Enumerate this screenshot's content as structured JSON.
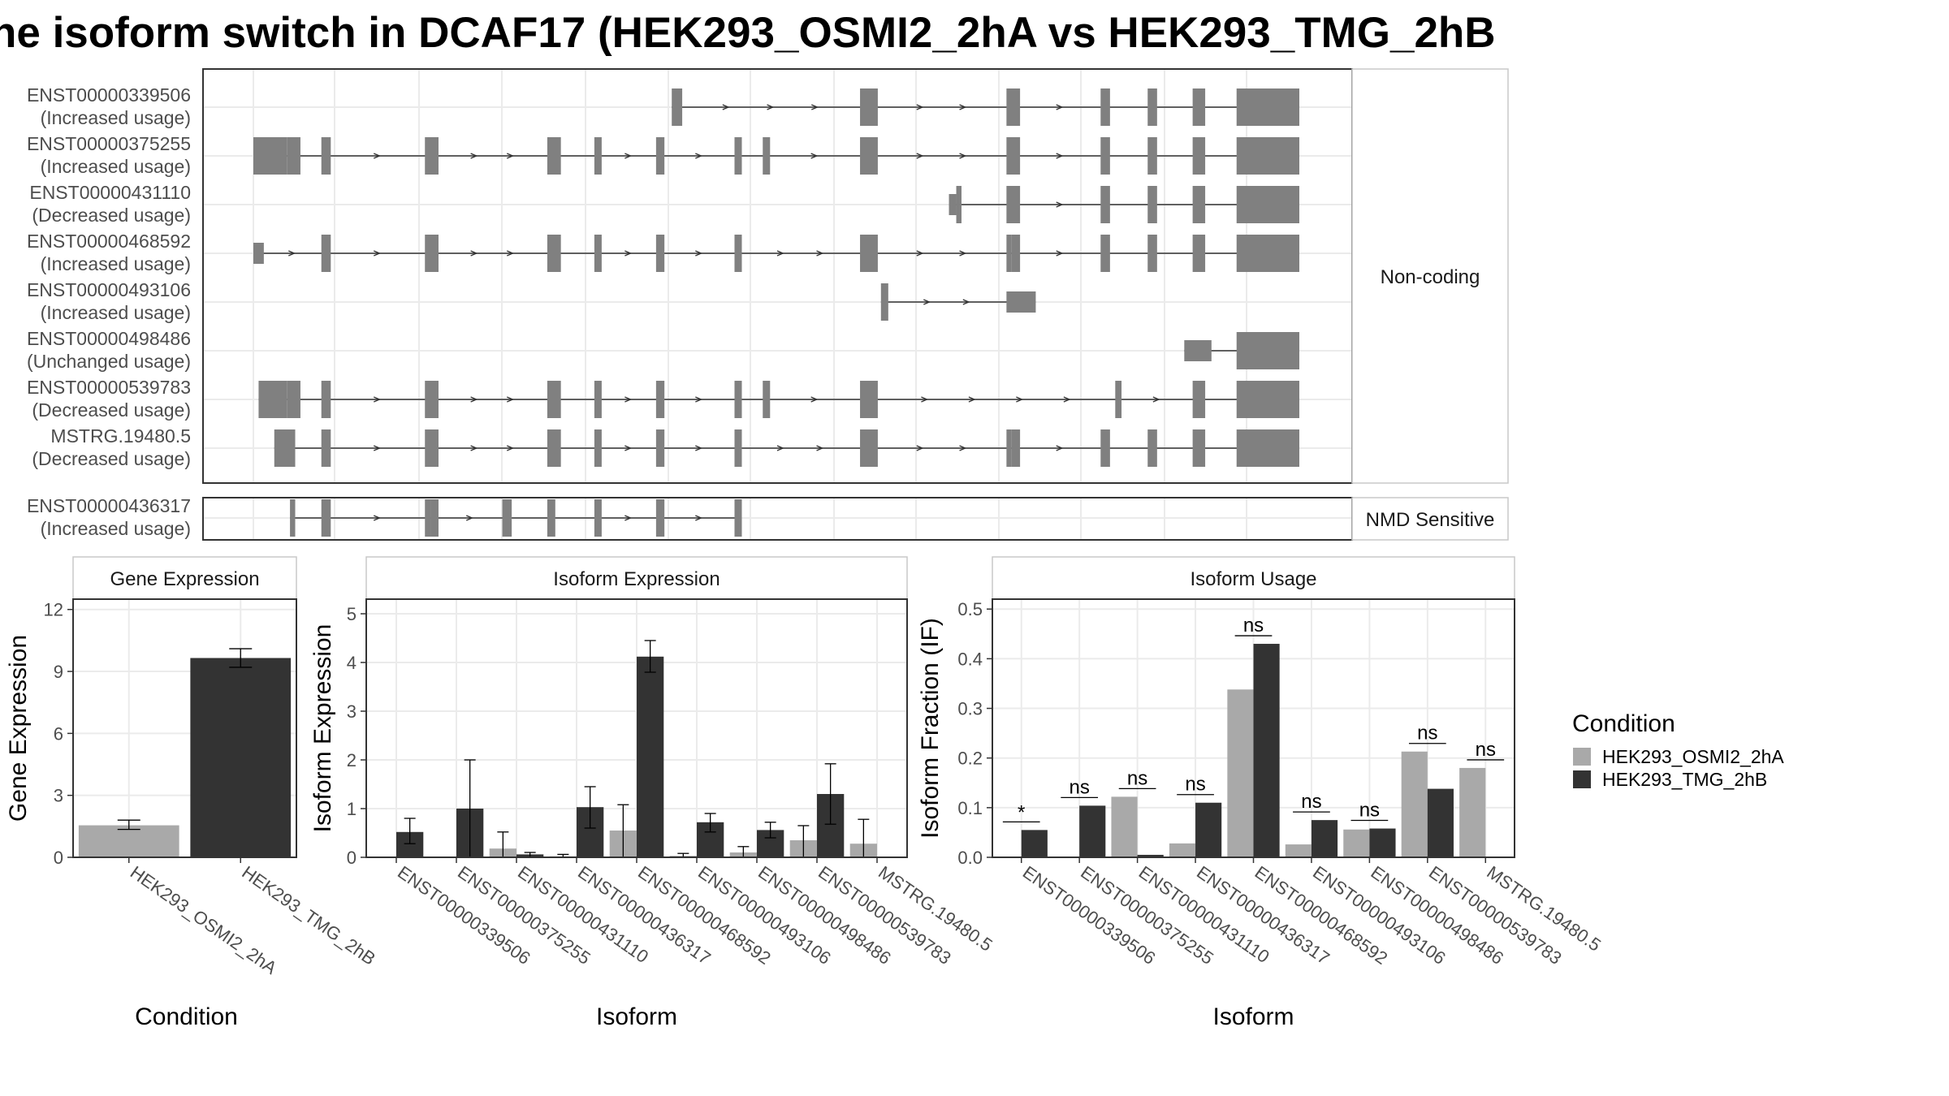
{
  "title": "ne isoform switch in DCAF17 (HEK293_OSMI2_2hA vs HEK293_TMG_2hB",
  "colors": {
    "cond_a": "#a9a9a9",
    "cond_b": "#333333",
    "exon": "#808080",
    "frame": "#333333",
    "grid": "#ebebeb"
  },
  "structure": {
    "groups": [
      {
        "label": "Non-coding",
        "isoforms": [
          {
            "name": "ENST00000339506",
            "usage": "(Increased usage)",
            "exons": [
              [
                0.4,
                0.41
              ],
              [
                0.58,
                0.597
              ],
              [
                0.72,
                0.733
              ],
              [
                0.81,
                0.819
              ],
              [
                0.855,
                0.864
              ],
              [
                0.898,
                0.91
              ],
              [
                0.94,
                1.0
              ]
            ]
          },
          {
            "name": "ENST00000375255",
            "usage": "(Increased usage)",
            "exons": [
              [
                0.0,
                0.032
              ],
              [
                0.032,
                0.045
              ],
              [
                0.065,
                0.074
              ],
              [
                0.164,
                0.177
              ],
              [
                0.281,
                0.294
              ],
              [
                0.326,
                0.333
              ],
              [
                0.385,
                0.393
              ],
              [
                0.46,
                0.467
              ],
              [
                0.487,
                0.494
              ],
              [
                0.58,
                0.597
              ],
              [
                0.72,
                0.733
              ],
              [
                0.81,
                0.819
              ],
              [
                0.855,
                0.864
              ],
              [
                0.898,
                0.91
              ],
              [
                0.94,
                1.0
              ]
            ]
          },
          {
            "name": "ENST00000431110",
            "usage": "(Decreased usage)",
            "exons": [
              [
                0.665,
                0.672
              ],
              [
                0.672,
                0.677
              ],
              [
                0.72,
                0.733
              ],
              [
                0.81,
                0.819
              ],
              [
                0.855,
                0.864
              ],
              [
                0.898,
                0.91
              ],
              [
                0.94,
                1.0
              ]
            ]
          },
          {
            "name": "ENST00000468592",
            "usage": "(Increased usage)",
            "exons": [
              [
                0.0,
                0.01
              ],
              [
                0.065,
                0.074
              ],
              [
                0.164,
                0.177
              ],
              [
                0.281,
                0.294
              ],
              [
                0.326,
                0.333
              ],
              [
                0.385,
                0.393
              ],
              [
                0.46,
                0.467
              ],
              [
                0.58,
                0.597
              ],
              [
                0.72,
                0.725
              ],
              [
                0.725,
                0.733
              ],
              [
                0.81,
                0.819
              ],
              [
                0.855,
                0.864
              ],
              [
                0.898,
                0.91
              ],
              [
                0.94,
                1.0
              ]
            ]
          },
          {
            "name": "ENST00000493106",
            "usage": "(Increased usage)",
            "exons": [
              [
                0.6,
                0.607
              ],
              [
                0.72,
                0.748
              ]
            ]
          },
          {
            "name": "ENST00000498486",
            "usage": "(Unchanged usage)",
            "exons": [
              [
                0.89,
                0.916
              ],
              [
                0.94,
                1.0
              ]
            ]
          },
          {
            "name": "ENST00000539783",
            "usage": "(Decreased usage)",
            "exons": [
              [
                0.005,
                0.032
              ],
              [
                0.032,
                0.045
              ],
              [
                0.065,
                0.074
              ],
              [
                0.164,
                0.177
              ],
              [
                0.281,
                0.294
              ],
              [
                0.326,
                0.333
              ],
              [
                0.385,
                0.393
              ],
              [
                0.46,
                0.467
              ],
              [
                0.487,
                0.494
              ],
              [
                0.58,
                0.597
              ],
              [
                0.824,
                0.83
              ],
              [
                0.898,
                0.91
              ],
              [
                0.94,
                1.0
              ]
            ]
          },
          {
            "name": "MSTRG.19480.5",
            "usage": "(Decreased usage)",
            "exons": [
              [
                0.02,
                0.04
              ],
              [
                0.065,
                0.074
              ],
              [
                0.164,
                0.177
              ],
              [
                0.281,
                0.294
              ],
              [
                0.326,
                0.333
              ],
              [
                0.385,
                0.393
              ],
              [
                0.46,
                0.467
              ],
              [
                0.58,
                0.597
              ],
              [
                0.72,
                0.725
              ],
              [
                0.725,
                0.733
              ],
              [
                0.81,
                0.819
              ],
              [
                0.855,
                0.864
              ],
              [
                0.898,
                0.91
              ],
              [
                0.94,
                1.0
              ]
            ]
          }
        ]
      },
      {
        "label": "NMD Sensitive",
        "isoforms": [
          {
            "name": "ENST00000436317",
            "usage": "(Increased usage)",
            "exons": [
              [
                0.035,
                0.04
              ],
              [
                0.065,
                0.074
              ],
              [
                0.164,
                0.17
              ],
              [
                0.17,
                0.177
              ],
              [
                0.238,
                0.247
              ],
              [
                0.281,
                0.284
              ],
              [
                0.284,
                0.287
              ],
              [
                0.326,
                0.333
              ],
              [
                0.385,
                0.393
              ],
              [
                0.46,
                0.467
              ]
            ]
          }
        ]
      }
    ]
  },
  "chart_data": [
    {
      "type": "bar",
      "title": "Gene Expression",
      "xlabel": "Condition",
      "ylabel": "Gene Expression",
      "ylim": [
        0,
        12.5
      ],
      "yticks": [
        0,
        3,
        6,
        9,
        12
      ],
      "categories": [
        "HEK293_OSMI2_2hA",
        "HEK293_TMG_2hB"
      ],
      "values": [
        1.55,
        9.65
      ],
      "error": [
        [
          1.35,
          1.8
        ],
        [
          9.2,
          10.1
        ]
      ]
    },
    {
      "type": "bar",
      "title": "Isoform Expression",
      "xlabel": "Isoform",
      "ylabel": "Isoform Expression",
      "ylim": [
        0,
        5.3
      ],
      "yticks": [
        0,
        1,
        2,
        3,
        4,
        5
      ],
      "categories": [
        "ENST00000339506",
        "ENST00000375255",
        "ENST00000431110",
        "ENST00000436317",
        "ENST00000468592",
        "ENST00000493106",
        "ENST00000498486",
        "ENST00000539783",
        "MSTRG.19480.5"
      ],
      "series": [
        {
          "name": "HEK293_OSMI2_2hA",
          "values": [
            0.0,
            0.0,
            0.18,
            0.02,
            0.55,
            0.03,
            0.1,
            0.35,
            0.28
          ],
          "error": [
            [
              0,
              0
            ],
            [
              0,
              0
            ],
            [
              0,
              0.52
            ],
            [
              0,
              0.06
            ],
            [
              0,
              1.08
            ],
            [
              0,
              0.08
            ],
            [
              0,
              0.22
            ],
            [
              0,
              0.65
            ],
            [
              0,
              0.78
            ]
          ]
        },
        {
          "name": "HEK293_TMG_2hB",
          "values": [
            0.52,
            1.0,
            0.06,
            1.03,
            4.12,
            0.72,
            0.56,
            1.3,
            0.0
          ],
          "error": [
            [
              0.28,
              0.8
            ],
            [
              0,
              2.0
            ],
            [
              0,
              0.1
            ],
            [
              0.6,
              1.45
            ],
            [
              3.8,
              4.45
            ],
            [
              0.52,
              0.9
            ],
            [
              0.4,
              0.72
            ],
            [
              0.68,
              1.92
            ],
            [
              0,
              0
            ]
          ]
        }
      ]
    },
    {
      "type": "bar",
      "title": "Isoform Usage",
      "xlabel": "Isoform",
      "ylabel": "Isoform Fraction (IF)",
      "ylim": [
        0,
        0.52
      ],
      "yticks": [
        "0.0",
        "0.1",
        "0.2",
        "0.3",
        "0.4",
        "0.5"
      ],
      "categories": [
        "ENST00000339506",
        "ENST00000375255",
        "ENST00000431110",
        "ENST00000436317",
        "ENST00000468592",
        "ENST00000493106",
        "ENST00000498486",
        "ENST00000539783",
        "MSTRG.19480.5"
      ],
      "series": [
        {
          "name": "HEK293_OSMI2_2hA",
          "values": [
            0.0,
            0.0,
            0.122,
            0.028,
            0.338,
            0.026,
            0.056,
            0.213,
            0.18
          ]
        },
        {
          "name": "HEK293_TMG_2hB",
          "values": [
            0.055,
            0.104,
            0.005,
            0.11,
            0.43,
            0.075,
            0.058,
            0.138,
            0.0
          ]
        }
      ],
      "significance": [
        "*",
        "ns",
        "ns",
        "ns",
        "ns",
        "ns",
        "ns",
        "ns",
        "ns"
      ]
    }
  ],
  "legend": {
    "title": "Condition",
    "items": [
      {
        "label": "HEK293_OSMI2_2hA",
        "color": "#a9a9a9"
      },
      {
        "label": "HEK293_TMG_2hB",
        "color": "#333333"
      }
    ]
  }
}
